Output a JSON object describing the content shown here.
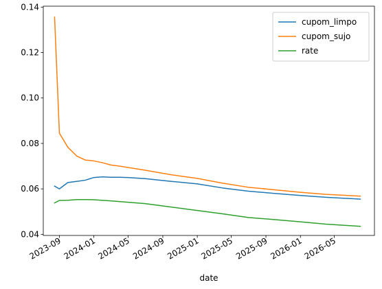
{
  "chart_data": {
    "type": "line",
    "title": "",
    "xlabel": "date",
    "ylabel": "",
    "grid": false,
    "legend_position": "top-right",
    "x_axis_type": "date",
    "xlim": [
      "2023-07-06",
      "2026-09-20"
    ],
    "ylim": [
      0.0395,
      0.1404
    ],
    "x_ticks": [
      {
        "date": "2023-09-01",
        "label": "2023-09"
      },
      {
        "date": "2024-01-01",
        "label": "2024-01"
      },
      {
        "date": "2024-05-01",
        "label": "2024-05"
      },
      {
        "date": "2024-09-01",
        "label": "2024-09"
      },
      {
        "date": "2025-01-01",
        "label": "2025-01"
      },
      {
        "date": "2025-05-01",
        "label": "2025-05"
      },
      {
        "date": "2025-09-01",
        "label": "2025-09"
      },
      {
        "date": "2026-01-01",
        "label": "2026-01"
      },
      {
        "date": "2026-05-01",
        "label": "2026-05"
      }
    ],
    "y_ticks": [
      {
        "value": 0.04,
        "label": "0.04"
      },
      {
        "value": 0.06,
        "label": "0.06"
      },
      {
        "value": 0.08,
        "label": "0.08"
      },
      {
        "value": 0.1,
        "label": "0.10"
      },
      {
        "value": 0.12,
        "label": "0.12"
      },
      {
        "value": 0.14,
        "label": "0.14"
      }
    ],
    "series": [
      {
        "name": "cupom_limpo",
        "color": "#1f77b4",
        "points": [
          {
            "x": "2023-08-15",
            "y": 0.0612
          },
          {
            "x": "2023-09-01",
            "y": 0.06
          },
          {
            "x": "2023-10-01",
            "y": 0.0628
          },
          {
            "x": "2023-11-01",
            "y": 0.0633
          },
          {
            "x": "2023-12-01",
            "y": 0.0638
          },
          {
            "x": "2024-01-01",
            "y": 0.065
          },
          {
            "x": "2024-02-01",
            "y": 0.0653
          },
          {
            "x": "2024-03-01",
            "y": 0.0651
          },
          {
            "x": "2024-04-01",
            "y": 0.0651
          },
          {
            "x": "2024-05-01",
            "y": 0.065
          },
          {
            "x": "2024-07-01",
            "y": 0.0645
          },
          {
            "x": "2024-10-01",
            "y": 0.0633
          },
          {
            "x": "2025-01-01",
            "y": 0.0622
          },
          {
            "x": "2025-04-01",
            "y": 0.0604
          },
          {
            "x": "2025-07-01",
            "y": 0.059
          },
          {
            "x": "2025-10-01",
            "y": 0.058
          },
          {
            "x": "2026-01-01",
            "y": 0.0571
          },
          {
            "x": "2026-04-01",
            "y": 0.0563
          },
          {
            "x": "2026-08-01",
            "y": 0.0555
          }
        ]
      },
      {
        "name": "cupom_sujo",
        "color": "#ff7f0e",
        "points": [
          {
            "x": "2023-08-15",
            "y": 0.1356
          },
          {
            "x": "2023-09-01",
            "y": 0.0845
          },
          {
            "x": "2023-10-01",
            "y": 0.0783
          },
          {
            "x": "2023-11-01",
            "y": 0.0745
          },
          {
            "x": "2023-12-01",
            "y": 0.0727
          },
          {
            "x": "2024-01-01",
            "y": 0.0723
          },
          {
            "x": "2024-02-01",
            "y": 0.0715
          },
          {
            "x": "2024-03-01",
            "y": 0.0705
          },
          {
            "x": "2024-04-01",
            "y": 0.07
          },
          {
            "x": "2024-05-01",
            "y": 0.0694
          },
          {
            "x": "2024-07-01",
            "y": 0.0682
          },
          {
            "x": "2024-10-01",
            "y": 0.0662
          },
          {
            "x": "2025-01-01",
            "y": 0.0646
          },
          {
            "x": "2025-04-01",
            "y": 0.0625
          },
          {
            "x": "2025-07-01",
            "y": 0.0607
          },
          {
            "x": "2025-10-01",
            "y": 0.0596
          },
          {
            "x": "2026-01-01",
            "y": 0.0585
          },
          {
            "x": "2026-04-01",
            "y": 0.0576
          },
          {
            "x": "2026-08-01",
            "y": 0.0568
          }
        ]
      },
      {
        "name": "rate",
        "color": "#2ca02c",
        "points": [
          {
            "x": "2023-08-15",
            "y": 0.0538
          },
          {
            "x": "2023-09-01",
            "y": 0.0549
          },
          {
            "x": "2023-10-01",
            "y": 0.055
          },
          {
            "x": "2023-11-01",
            "y": 0.0553
          },
          {
            "x": "2023-12-01",
            "y": 0.0553
          },
          {
            "x": "2024-01-01",
            "y": 0.0552
          },
          {
            "x": "2024-03-01",
            "y": 0.0547
          },
          {
            "x": "2024-05-01",
            "y": 0.0541
          },
          {
            "x": "2024-07-01",
            "y": 0.0535
          },
          {
            "x": "2024-10-01",
            "y": 0.052
          },
          {
            "x": "2025-01-01",
            "y": 0.0505
          },
          {
            "x": "2025-04-01",
            "y": 0.049
          },
          {
            "x": "2025-07-01",
            "y": 0.0474
          },
          {
            "x": "2025-10-01",
            "y": 0.0465
          },
          {
            "x": "2026-01-01",
            "y": 0.0455
          },
          {
            "x": "2026-04-01",
            "y": 0.0445
          },
          {
            "x": "2026-08-01",
            "y": 0.0435
          }
        ]
      }
    ]
  }
}
